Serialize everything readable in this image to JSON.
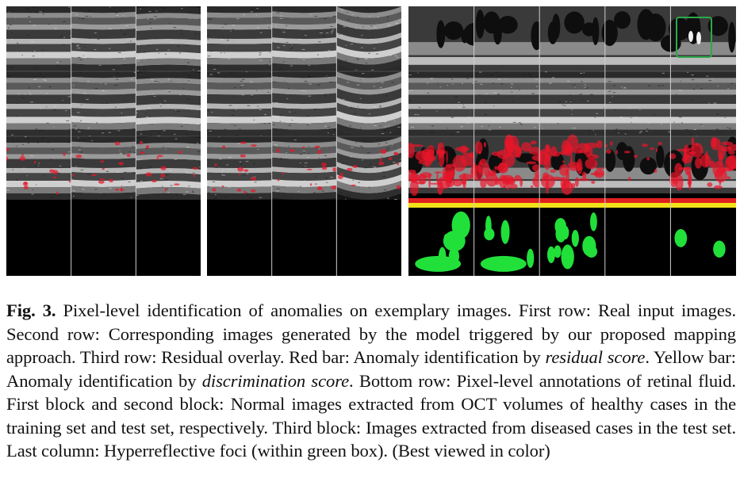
{
  "caption": {
    "label": "Fig. 3.",
    "parts": [
      {
        "t": " Pixel-level identification of anomalies on exemplary images. First row: Real input images. Second row: Corresponding images generated by the model triggered by our proposed mapping approach. Third row: Residual overlay. Red bar: Anomaly identification by ",
        "i": false
      },
      {
        "t": "residual score",
        "i": true
      },
      {
        "t": ". Yellow bar: Anomaly identification by ",
        "i": false
      },
      {
        "t": "discrimination score",
        "i": true
      },
      {
        "t": ". Bottom row: Pixel-level annotations of retinal fluid. First block and second block: Normal images extracted from OCT volumes of healthy cases in the training set and test set, respectively. Third block: Images extracted from diseased cases in the test set. Last column: Hyperreflective foci (within green box). (Best viewed in color)",
        "i": false
      }
    ]
  },
  "figure": {
    "blocks": [
      {
        "name": "block-training-normal",
        "columns": 3,
        "diseased": false
      },
      {
        "name": "block-test-normal",
        "columns": 3,
        "diseased": false
      },
      {
        "name": "block-test-diseased",
        "columns": 5,
        "diseased": true
      }
    ],
    "colors": {
      "residual_bar": "#e02020",
      "discrimination_bar": "#f2e21a",
      "annotation": "#22e03a",
      "highlight_box": "#2ea84a",
      "residual_overlay": "#e8152a"
    }
  }
}
